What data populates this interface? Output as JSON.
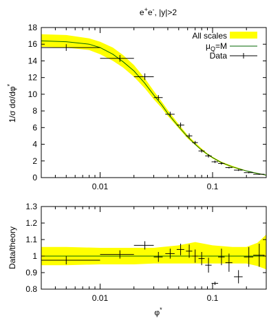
{
  "chart_data": [
    {
      "type": "line",
      "title_main": "e",
      "title_sup1": "+",
      "title_mid": "e",
      "title_sup2": "-",
      "title_tail": ", |y|>2",
      "ylabel": "1/σ dσ/dφ",
      "ylabel_sup": "*",
      "xscale": "log",
      "xlim": [
        0.003,
        0.3
      ],
      "ylim": [
        0,
        18
      ],
      "yticks": [
        "0",
        "2",
        "4",
        "6",
        "8",
        "10",
        "12",
        "14",
        "16",
        "18"
      ],
      "xticks": [
        "0.01",
        "0.1"
      ],
      "legend_placement": "top-right",
      "legend": {
        "band": "All scales",
        "line_main": "μ",
        "line_sub": "Q",
        "line_tail": "=M",
        "data": "Data"
      },
      "band_color": "#ffff00",
      "line_color": "#006400",
      "theory_x": [
        0.003,
        0.005,
        0.008,
        0.01,
        0.013,
        0.016,
        0.02,
        0.025,
        0.03,
        0.035,
        0.04,
        0.05,
        0.06,
        0.07,
        0.08,
        0.09,
        0.1,
        0.12,
        0.15,
        0.2,
        0.25,
        0.3
      ],
      "theory_y": [
        16.4,
        16.3,
        16.0,
        15.6,
        14.8,
        13.9,
        12.8,
        11.3,
        9.9,
        8.8,
        7.7,
        6.1,
        4.9,
        4.0,
        3.3,
        2.8,
        2.4,
        1.8,
        1.3,
        0.8,
        0.5,
        0.3
      ],
      "band_low": [
        15.7,
        15.6,
        15.3,
        14.8,
        14.0,
        13.2,
        12.1,
        10.7,
        9.4,
        8.4,
        7.4,
        5.9,
        4.7,
        3.9,
        3.2,
        2.7,
        2.3,
        1.7,
        1.2,
        0.75,
        0.45,
        0.25
      ],
      "band_high": [
        17.2,
        17.1,
        16.7,
        16.3,
        15.6,
        14.7,
        13.5,
        11.9,
        10.4,
        9.2,
        8.1,
        6.4,
        5.1,
        4.2,
        3.5,
        2.9,
        2.5,
        1.9,
        1.4,
        0.85,
        0.55,
        0.35
      ],
      "data_points": [
        {
          "x": 0.005,
          "y": 15.6,
          "xerr_lo": 0.002,
          "xerr_hi": 0.005,
          "yerr": 0.4
        },
        {
          "x": 0.015,
          "y": 14.3,
          "xerr_lo": 0.005,
          "xerr_hi": 0.005,
          "yerr": 0.4
        },
        {
          "x": 0.025,
          "y": 12.1,
          "xerr_lo": 0.005,
          "xerr_hi": 0.005,
          "yerr": 0.4
        },
        {
          "x": 0.033,
          "y": 9.6,
          "xerr_lo": 0.003,
          "xerr_hi": 0.003,
          "yerr": 0.3
        },
        {
          "x": 0.042,
          "y": 7.6,
          "xerr_lo": 0.004,
          "xerr_hi": 0.004,
          "yerr": 0.3
        },
        {
          "x": 0.052,
          "y": 6.3,
          "xerr_lo": 0.004,
          "xerr_hi": 0.004,
          "yerr": 0.3
        },
        {
          "x": 0.062,
          "y": 5.0,
          "xerr_lo": 0.004,
          "xerr_hi": 0.004,
          "yerr": 0.3
        },
        {
          "x": 0.07,
          "y": 4.2,
          "xerr_lo": 0.004,
          "xerr_hi": 0.004,
          "yerr": 0.2
        },
        {
          "x": 0.08,
          "y": 3.2,
          "xerr_lo": 0.005,
          "xerr_hi": 0.005,
          "yerr": 0.2
        },
        {
          "x": 0.092,
          "y": 2.6,
          "xerr_lo": 0.006,
          "xerr_hi": 0.006,
          "yerr": 0.2
        },
        {
          "x": 0.105,
          "y": 1.9,
          "xerr_lo": 0.007,
          "xerr_hi": 0.007,
          "yerr": 0.15
        },
        {
          "x": 0.12,
          "y": 1.7,
          "xerr_lo": 0.008,
          "xerr_hi": 0.008,
          "yerr": 0.15
        },
        {
          "x": 0.14,
          "y": 1.2,
          "xerr_lo": 0.01,
          "xerr_hi": 0.01,
          "yerr": 0.1
        },
        {
          "x": 0.17,
          "y": 0.9,
          "xerr_lo": 0.015,
          "xerr_hi": 0.015,
          "yerr": 0.1
        },
        {
          "x": 0.21,
          "y": 0.6,
          "xerr_lo": 0.02,
          "xerr_hi": 0.02,
          "yerr": 0.08
        },
        {
          "x": 0.26,
          "y": 0.4,
          "xerr_lo": 0.03,
          "xerr_hi": 0.03,
          "yerr": 0.06
        }
      ]
    },
    {
      "type": "scatter",
      "ylabel": "Data/theory",
      "xlabel_main": "φ",
      "xlabel_sup": "*",
      "xscale": "log",
      "xlim": [
        0.003,
        0.3
      ],
      "ylim": [
        0.8,
        1.3
      ],
      "yticks": [
        "0.8",
        "0.9",
        "1",
        "1.1",
        "1.2",
        "1.3"
      ],
      "xticks": [
        "0.01",
        "0.1"
      ],
      "band_color": "#ffff00",
      "line_color": "#006400",
      "band_x": [
        0.003,
        0.005,
        0.01,
        0.02,
        0.03,
        0.05,
        0.07,
        0.1,
        0.15,
        0.2,
        0.25,
        0.3
      ],
      "band_low": [
        0.945,
        0.945,
        0.95,
        0.95,
        0.955,
        0.955,
        0.955,
        0.955,
        0.955,
        0.955,
        0.94,
        0.92
      ],
      "band_high": [
        1.055,
        1.055,
        1.05,
        1.05,
        1.05,
        1.065,
        1.085,
        1.065,
        1.055,
        1.055,
        1.08,
        1.13
      ],
      "ratio_points": [
        {
          "x": 0.005,
          "y": 0.975,
          "xerr_lo": 0.002,
          "xerr_hi": 0.005,
          "yerr": 0.025
        },
        {
          "x": 0.015,
          "y": 1.01,
          "xerr_lo": 0.005,
          "xerr_hi": 0.005,
          "yerr": 0.025
        },
        {
          "x": 0.025,
          "y": 1.065,
          "xerr_lo": 0.005,
          "xerr_hi": 0.005,
          "yerr": 0.025
        },
        {
          "x": 0.033,
          "y": 0.995,
          "xerr_lo": 0.003,
          "xerr_hi": 0.003,
          "yerr": 0.03
        },
        {
          "x": 0.042,
          "y": 1.015,
          "xerr_lo": 0.004,
          "xerr_hi": 0.004,
          "yerr": 0.03
        },
        {
          "x": 0.052,
          "y": 1.04,
          "xerr_lo": 0.004,
          "xerr_hi": 0.004,
          "yerr": 0.035
        },
        {
          "x": 0.062,
          "y": 1.03,
          "xerr_lo": 0.004,
          "xerr_hi": 0.004,
          "yerr": 0.04
        },
        {
          "x": 0.07,
          "y": 1.0,
          "xerr_lo": 0.004,
          "xerr_hi": 0.004,
          "yerr": 0.04
        },
        {
          "x": 0.08,
          "y": 0.985,
          "xerr_lo": 0.005,
          "xerr_hi": 0.005,
          "yerr": 0.04
        },
        {
          "x": 0.092,
          "y": 0.945,
          "xerr_lo": 0.006,
          "xerr_hi": 0.006,
          "yerr": 0.045
        },
        {
          "x": 0.105,
          "y": 0.835,
          "xerr_lo": 0.007,
          "xerr_hi": 0.007,
          "yerr": 0.01
        },
        {
          "x": 0.12,
          "y": 0.995,
          "xerr_lo": 0.008,
          "xerr_hi": 0.008,
          "yerr": 0.05
        },
        {
          "x": 0.14,
          "y": 0.96,
          "xerr_lo": 0.01,
          "xerr_hi": 0.01,
          "yerr": 0.055
        },
        {
          "x": 0.17,
          "y": 0.875,
          "xerr_lo": 0.015,
          "xerr_hi": 0.015,
          "yerr": 0.04
        },
        {
          "x": 0.21,
          "y": 0.995,
          "xerr_lo": 0.02,
          "xerr_hi": 0.02,
          "yerr": 0.06
        },
        {
          "x": 0.26,
          "y": 1.005,
          "xerr_lo": 0.03,
          "xerr_hi": 0.03,
          "yerr": 0.07
        }
      ]
    }
  ]
}
